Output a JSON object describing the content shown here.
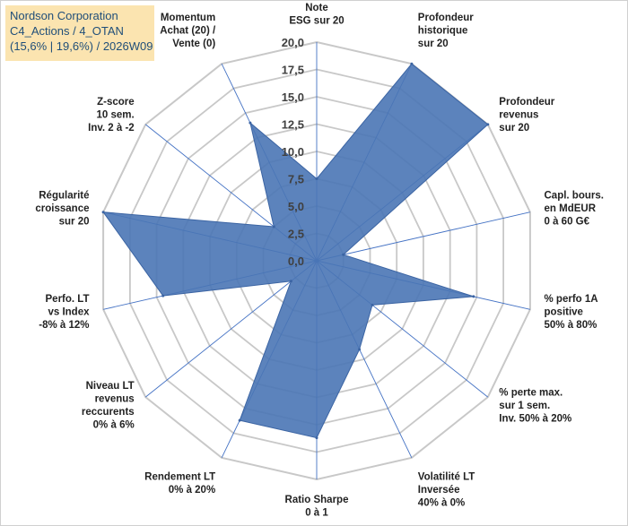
{
  "header": {
    "company": "Nordson Corporation",
    "category": "C4_Actions / 4_OTAN",
    "stats": "(15,6% | 19,6%) / 2026W09"
  },
  "colors": {
    "fill": "#4a75b5",
    "stroke": "#3b64a3",
    "grid": "#c8c8c8",
    "spoke": "#4472c4",
    "title_bg": "#fbe4b0",
    "title_text": "#1f4e79"
  },
  "chart_data": {
    "type": "radar",
    "title": "",
    "rmin": 0,
    "rmax": 20,
    "ticks": [
      "0,0",
      "2,5",
      "5,0",
      "7,5",
      "10,0",
      "12,5",
      "15,0",
      "17,5",
      "20,0"
    ],
    "axes": [
      {
        "label": [
          "Note",
          "ESG sur 20"
        ],
        "value": 7.5
      },
      {
        "label": [
          "Profondeur",
          "historique",
          "sur 20"
        ],
        "value": 20
      },
      {
        "label": [
          "Profondeur",
          "revenus",
          "sur 20"
        ],
        "value": 20
      },
      {
        "label": [
          "Capl. bours.",
          "en MdEUR",
          "0 à 60 G€"
        ],
        "value": 2.5
      },
      {
        "label": [
          "% perfo 1A",
          "positive",
          "50% à 80%"
        ],
        "value": 14.7
      },
      {
        "label": [
          "% perte max.",
          "sur 1 sem.",
          "Inv. 50% à 20%"
        ],
        "value": 6.5
      },
      {
        "label": [
          "Volatilité LT",
          "Inversée",
          "40% à 0%"
        ],
        "value": 9.0
      },
      {
        "label": [
          "Ratio Sharpe",
          "0 à 1"
        ],
        "value": 16.2
      },
      {
        "label": [
          "Rendement LT",
          "0% à 20%"
        ],
        "value": 16.2
      },
      {
        "label": [
          "Niveau LT",
          "revenus",
          "reccurents",
          "0% à 6%"
        ],
        "value": 3.0
      },
      {
        "label": [
          "Perfo. LT",
          "vs Index",
          "-8% à 12%"
        ],
        "value": 14.4
      },
      {
        "label": [
          "Régularité",
          "croissance",
          "sur 20"
        ],
        "value": 20
      },
      {
        "label": [
          "Z-score",
          "10 sem.",
          "Inv. 2 à -2"
        ],
        "value": 5.0
      },
      {
        "label": [
          "Momentum",
          "Achat (20) /",
          "Vente (0)"
        ],
        "value": 14.0
      }
    ]
  }
}
